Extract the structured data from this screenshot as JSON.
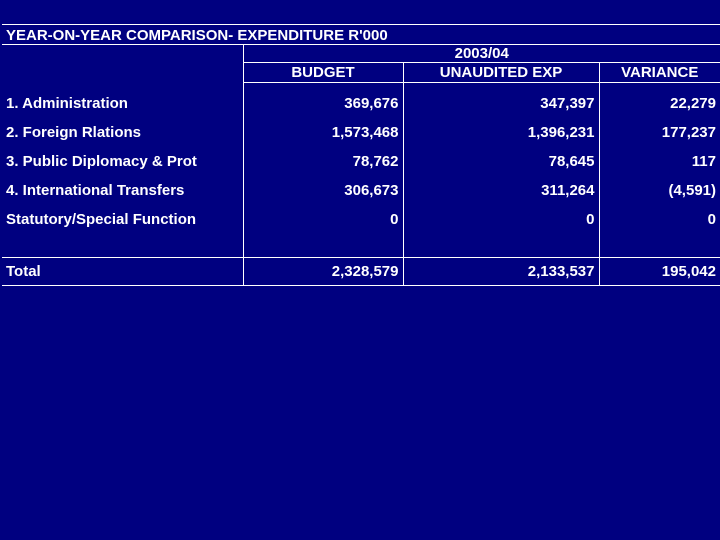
{
  "title": "YEAR-ON-YEAR COMPARISON- EXPENDITURE R'000",
  "period": "2003/04",
  "columns": {
    "budget": "BUDGET",
    "unaudited": "UNAUDITED EXP",
    "variance": "VARIANCE"
  },
  "rows": [
    {
      "label": "1. Administration",
      "budget": "369,676",
      "unaudited": "347,397",
      "variance": "22,279"
    },
    {
      "label": "2. Foreign Rlations",
      "budget": "1,573,468",
      "unaudited": "1,396,231",
      "variance": "177,237"
    },
    {
      "label": "3. Public Diplomacy & Prot",
      "budget": "78,762",
      "unaudited": "78,645",
      "variance": "117"
    },
    {
      "label": "4. International Transfers",
      "budget": "306,673",
      "unaudited": "311,264",
      "variance": "(4,591)"
    },
    {
      "label": "Statutory/Special Function",
      "budget": "0",
      "unaudited": "0",
      "variance": "0"
    }
  ],
  "total": {
    "label": "Total",
    "budget": "2,328,579",
    "unaudited": "2,133,537",
    "variance": "195,042"
  }
}
